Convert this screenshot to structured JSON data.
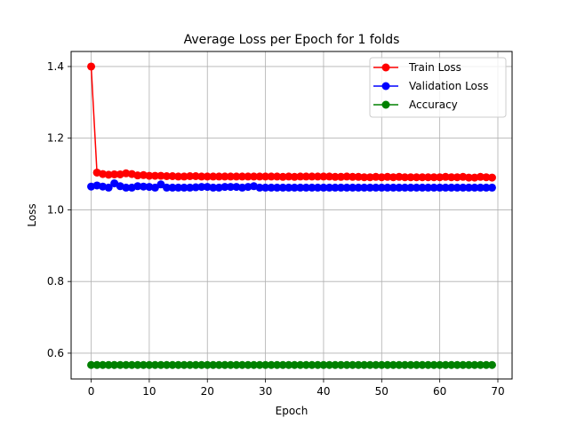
{
  "chart_data": {
    "type": "line",
    "title": "Average Loss per Epoch for 1 folds",
    "xlabel": "Epoch",
    "ylabel": "Loss",
    "xlim": [
      -3.45,
      72.45
    ],
    "ylim": [
      0.528,
      1.442
    ],
    "xticks": [
      0,
      10,
      20,
      30,
      40,
      50,
      60,
      70
    ],
    "yticks": [
      0.6,
      0.8,
      1.0,
      1.2,
      1.4
    ],
    "ytick_labels": [
      "0.6",
      "0.8",
      "1.0",
      "1.2",
      "1.4"
    ],
    "grid": true,
    "legend": "top-right",
    "x": [
      0,
      1,
      2,
      3,
      4,
      5,
      6,
      7,
      8,
      9,
      10,
      11,
      12,
      13,
      14,
      15,
      16,
      17,
      18,
      19,
      20,
      21,
      22,
      23,
      24,
      25,
      26,
      27,
      28,
      29,
      30,
      31,
      32,
      33,
      34,
      35,
      36,
      37,
      38,
      39,
      40,
      41,
      42,
      43,
      44,
      45,
      46,
      47,
      48,
      49,
      50,
      51,
      52,
      53,
      54,
      55,
      56,
      57,
      58,
      59,
      60,
      61,
      62,
      63,
      64,
      65,
      66,
      67,
      68,
      69
    ],
    "series": [
      {
        "name": "Train Loss",
        "color": "#ff0000",
        "values": [
          1.4,
          1.104,
          1.1,
          1.098,
          1.099,
          1.099,
          1.102,
          1.1,
          1.096,
          1.097,
          1.095,
          1.095,
          1.095,
          1.094,
          1.094,
          1.093,
          1.093,
          1.094,
          1.094,
          1.093,
          1.093,
          1.093,
          1.093,
          1.093,
          1.093,
          1.093,
          1.093,
          1.093,
          1.093,
          1.093,
          1.093,
          1.093,
          1.093,
          1.092,
          1.093,
          1.092,
          1.093,
          1.093,
          1.093,
          1.093,
          1.093,
          1.093,
          1.092,
          1.092,
          1.093,
          1.092,
          1.092,
          1.091,
          1.091,
          1.092,
          1.091,
          1.092,
          1.091,
          1.092,
          1.091,
          1.091,
          1.091,
          1.091,
          1.091,
          1.091,
          1.091,
          1.092,
          1.091,
          1.091,
          1.092,
          1.09,
          1.09,
          1.092,
          1.091,
          1.09
        ]
      },
      {
        "name": "Validation Loss",
        "color": "#0000ff",
        "values": [
          1.065,
          1.068,
          1.065,
          1.062,
          1.074,
          1.066,
          1.062,
          1.062,
          1.066,
          1.065,
          1.064,
          1.062,
          1.071,
          1.062,
          1.062,
          1.062,
          1.062,
          1.062,
          1.063,
          1.064,
          1.064,
          1.062,
          1.062,
          1.064,
          1.064,
          1.064,
          1.062,
          1.064,
          1.066,
          1.062,
          1.062,
          1.062,
          1.062,
          1.062,
          1.062,
          1.062,
          1.062,
          1.062,
          1.062,
          1.062,
          1.062,
          1.062,
          1.062,
          1.062,
          1.062,
          1.062,
          1.062,
          1.062,
          1.062,
          1.062,
          1.062,
          1.062,
          1.062,
          1.062,
          1.062,
          1.062,
          1.062,
          1.062,
          1.062,
          1.062,
          1.062,
          1.062,
          1.062,
          1.062,
          1.062,
          1.062,
          1.062,
          1.062,
          1.062,
          1.062
        ]
      },
      {
        "name": "Accuracy",
        "color": "#008000",
        "values": [
          0.567,
          0.567,
          0.567,
          0.567,
          0.567,
          0.567,
          0.567,
          0.567,
          0.567,
          0.567,
          0.567,
          0.567,
          0.567,
          0.567,
          0.567,
          0.567,
          0.567,
          0.567,
          0.567,
          0.567,
          0.567,
          0.567,
          0.567,
          0.567,
          0.567,
          0.567,
          0.567,
          0.567,
          0.567,
          0.567,
          0.567,
          0.567,
          0.567,
          0.567,
          0.567,
          0.567,
          0.567,
          0.567,
          0.567,
          0.567,
          0.567,
          0.567,
          0.567,
          0.567,
          0.567,
          0.567,
          0.567,
          0.567,
          0.567,
          0.567,
          0.567,
          0.567,
          0.567,
          0.567,
          0.567,
          0.567,
          0.567,
          0.567,
          0.567,
          0.567,
          0.567,
          0.567,
          0.567,
          0.567,
          0.567,
          0.567,
          0.567,
          0.567,
          0.567,
          0.567
        ]
      }
    ]
  }
}
